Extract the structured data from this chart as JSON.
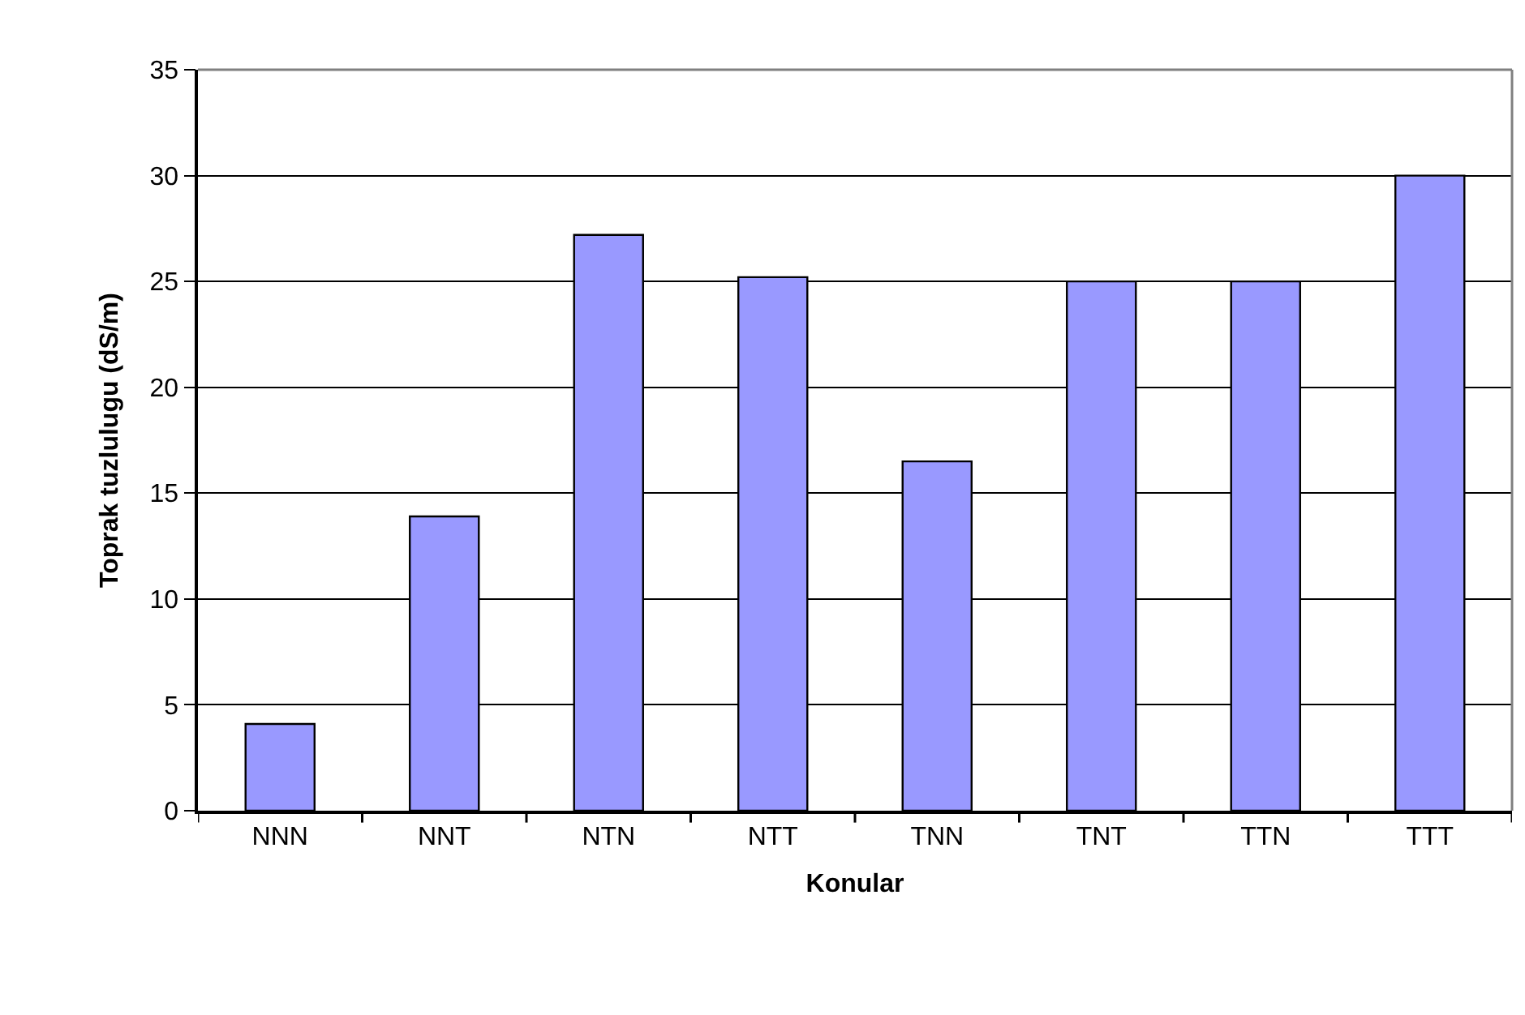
{
  "chart_data": {
    "type": "bar",
    "xlabel": "Konular",
    "ylabel": "Toprak tuzlulugu (dS/m)",
    "categories": [
      "NNN",
      "NNT",
      "NTN",
      "NTT",
      "TNN",
      "TNT",
      "TTN",
      "TTT"
    ],
    "values": [
      4.1,
      13.9,
      27.2,
      25.2,
      16.5,
      25.0,
      25.0,
      30.0
    ],
    "color": "#9999ff",
    "ylim": [
      0,
      35
    ],
    "yticks": [
      0,
      5,
      10,
      15,
      20,
      25,
      30,
      35
    ],
    "grid": "y"
  }
}
